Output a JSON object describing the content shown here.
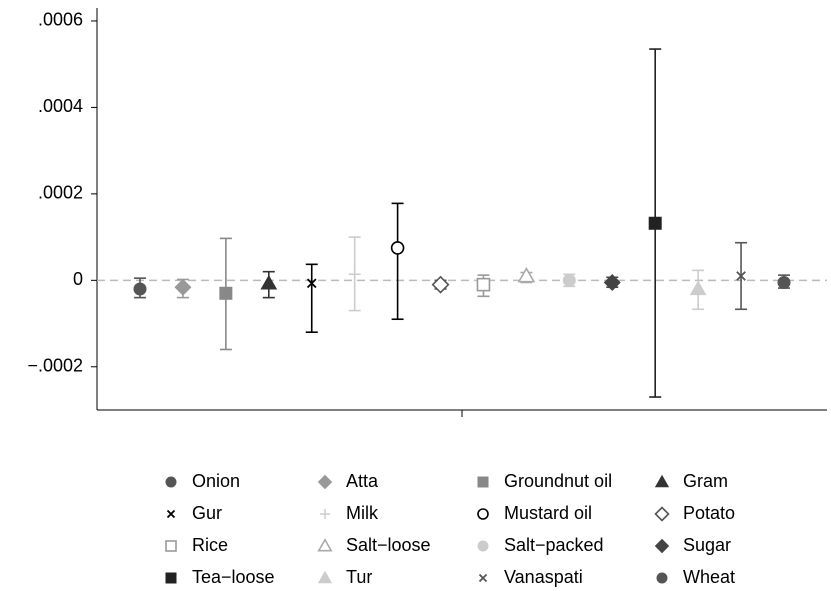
{
  "chart_data": {
    "type": "errorbar",
    "ylim": [
      -0.0003,
      0.00063
    ],
    "yticks": [
      {
        "value": 0.0006,
        "label": ".0006"
      },
      {
        "value": 0.0004,
        "label": ".0004"
      },
      {
        "value": 0.0002,
        "label": ".0002"
      },
      0,
      {
        "value": -0.0002,
        "label": "−.0002"
      }
    ],
    "refline": 0,
    "series": [
      {
        "name": "Onion",
        "color": "#555555",
        "marker": "circle",
        "filled": true,
        "values": [
          -2e-05
        ],
        "ci_low": [
          -4e-05
        ],
        "ci_high": [
          5e-06
        ]
      },
      {
        "name": "Atta",
        "color": "#999999",
        "marker": "diamond",
        "filled": true,
        "values": [
          -1.6e-05
        ],
        "ci_low": [
          -4e-05
        ],
        "ci_high": [
          2e-06
        ]
      },
      {
        "name": "Groundnut oil",
        "color": "#888888",
        "marker": "square",
        "filled": true,
        "values": [
          -3e-05
        ],
        "ci_low": [
          -0.00016
        ],
        "ci_high": [
          9.7e-05
        ]
      },
      {
        "name": "Gram",
        "color": "#333333",
        "marker": "triangle",
        "filled": true,
        "values": [
          -7e-06
        ],
        "ci_low": [
          -4e-05
        ],
        "ci_high": [
          2e-05
        ]
      },
      {
        "name": "Gur",
        "color": "#000000",
        "marker": "x",
        "filled": true,
        "values": [
          -7e-06
        ],
        "ci_low": [
          -0.00012
        ],
        "ci_high": [
          3.7e-05
        ]
      },
      {
        "name": "Milk",
        "color": "#cccccc",
        "marker": "plus",
        "filled": true,
        "values": [
          1.4e-05
        ],
        "ci_low": [
          -7e-05
        ],
        "ci_high": [
          0.0001
        ]
      },
      {
        "name": "Mustard oil",
        "color": "#000000",
        "marker": "circle",
        "filled": false,
        "values": [
          7.5e-05
        ],
        "ci_low": [
          -9e-05
        ],
        "ci_high": [
          0.000178
        ]
      },
      {
        "name": "Potato",
        "color": "#555555",
        "marker": "diamond",
        "filled": false,
        "values": [
          -1e-05
        ],
        "ci_low": [
          -2e-05
        ],
        "ci_high": [
          0
        ]
      },
      {
        "name": "Rice",
        "color": "#999999",
        "marker": "square",
        "filled": false,
        "values": [
          -1e-05
        ],
        "ci_low": [
          -3.7e-05
        ],
        "ci_high": [
          1.2e-05
        ]
      },
      {
        "name": "Salt−loose",
        "color": "#aaaaaa",
        "marker": "triangle",
        "filled": false,
        "values": [
          1e-05
        ],
        "ci_low": [
          -5e-06
        ],
        "ci_high": [
          1.8e-05
        ]
      },
      {
        "name": "Salt−packed",
        "color": "#cccccc",
        "marker": "circle",
        "filled": true,
        "values": [
          0
        ],
        "ci_low": [
          -1.4e-05
        ],
        "ci_high": [
          1.4e-05
        ]
      },
      {
        "name": "Sugar",
        "color": "#444444",
        "marker": "diamond",
        "filled": true,
        "values": [
          -5e-06
        ],
        "ci_low": [
          -1.6e-05
        ],
        "ci_high": [
          7e-06
        ]
      },
      {
        "name": "Tea−loose",
        "color": "#222222",
        "marker": "square",
        "filled": true,
        "values": [
          0.000132
        ],
        "ci_low": [
          -0.00027
        ],
        "ci_high": [
          0.000535
        ]
      },
      {
        "name": "Tur",
        "color": "#cccccc",
        "marker": "triangle",
        "filled": true,
        "values": [
          -2e-05
        ],
        "ci_low": [
          -6.7e-05
        ],
        "ci_high": [
          2.3e-05
        ]
      },
      {
        "name": "Vanaspati",
        "color": "#555555",
        "marker": "x",
        "filled": true,
        "values": [
          1e-05
        ],
        "ci_low": [
          -6.7e-05
        ],
        "ci_high": [
          8.7e-05
        ]
      },
      {
        "name": "Wheat",
        "color": "#555555",
        "marker": "circle",
        "filled": true,
        "values": [
          -5e-06
        ],
        "ci_low": [
          -1.8e-05
        ],
        "ci_high": [
          1.2e-05
        ]
      }
    ]
  }
}
